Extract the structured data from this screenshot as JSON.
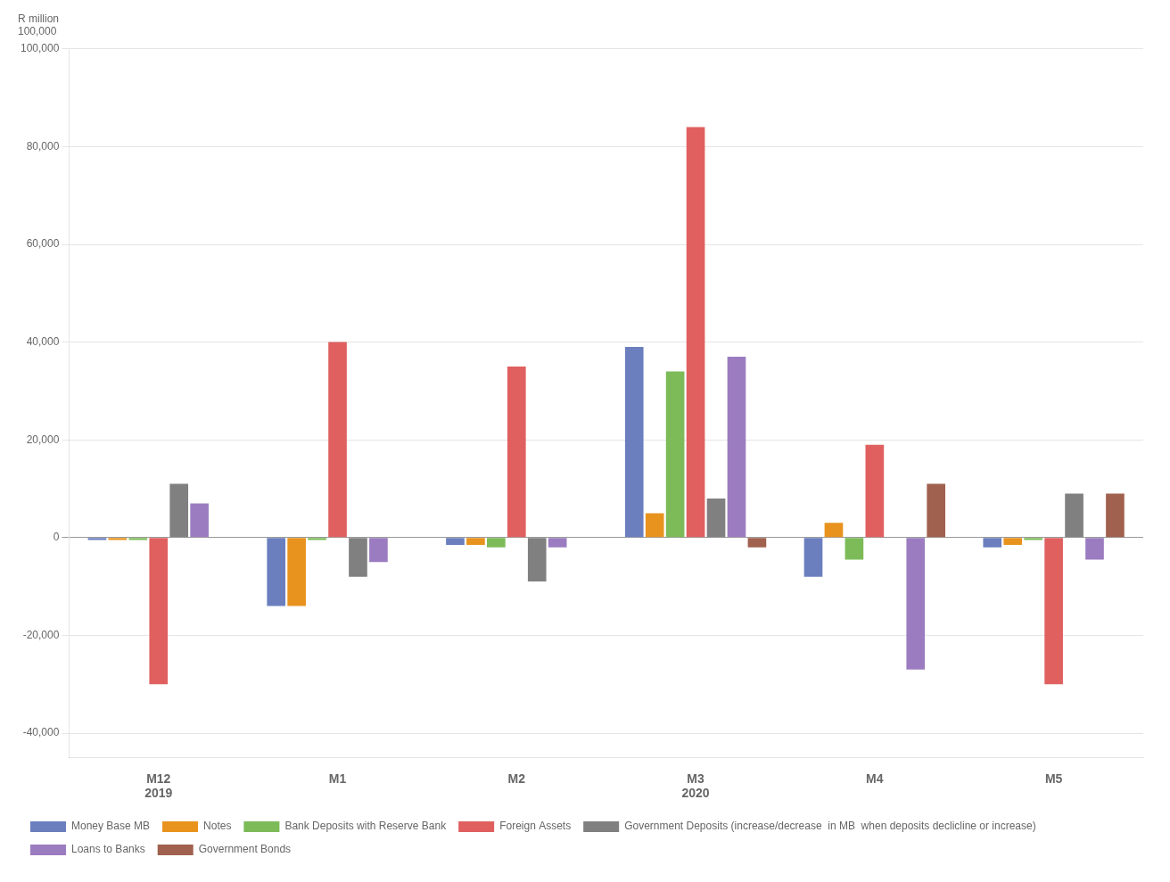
{
  "chart_data": {
    "type": "bar",
    "categories": [
      "M12",
      "M1",
      "M2",
      "M3",
      "M4",
      "M5"
    ],
    "series": [
      {
        "name": "Money Base MB",
        "color": "#6B7FBF",
        "values": [
          -500,
          -14000,
          -1500,
          39000,
          -8000,
          -2000
        ]
      },
      {
        "name": "Notes",
        "color": "#E8931E",
        "values": [
          -500,
          -14000,
          -1500,
          5000,
          3000,
          -1500
        ]
      },
      {
        "name": "Bank Deposits with Reserve Bank",
        "color": "#7CBB58",
        "values": [
          -500,
          -500,
          -2000,
          34000,
          -4500,
          -500
        ]
      },
      {
        "name": "Foreign Assets",
        "color": "#E06060",
        "values": [
          -30000,
          40000,
          35000,
          84000,
          19000,
          -30000
        ]
      },
      {
        "name": "Government Deposits (increase/decrease  in MB  when deposits declicline or increase)",
        "color": "#808080",
        "values": [
          11000,
          -8000,
          -9000,
          8000,
          0,
          9000
        ]
      },
      {
        "name": "Loans to Banks",
        "color": "#9B7CC0",
        "values": [
          7000,
          -5000,
          -2000,
          37000,
          -27000,
          -4500
        ]
      },
      {
        "name": "Government Bonds",
        "color": "#A0614E",
        "values": [
          0,
          0,
          0,
          -2000,
          11000,
          9000
        ]
      }
    ],
    "ylim": [
      -45000,
      100000
    ],
    "yticks": [
      {
        "value": -40000,
        "label": "-40,000"
      },
      {
        "value": -20000,
        "label": "-20,000"
      },
      0,
      {
        "value": 20000,
        "label": "20,000"
      },
      {
        "value": 40000,
        "label": "40,000"
      },
      {
        "value": 60000,
        "label": "60,000"
      },
      {
        "value": 80000,
        "label": "80,000"
      },
      {
        "value": 100000,
        "label": "100,000"
      }
    ],
    "grid": true,
    "legend": "bottom",
    "annotations": [
      {
        "text": "R million"
      },
      {
        "text": "100,000"
      },
      {
        "text": "2019",
        "category": "M12"
      },
      {
        "text": "2020",
        "category": "M3"
      }
    ]
  }
}
